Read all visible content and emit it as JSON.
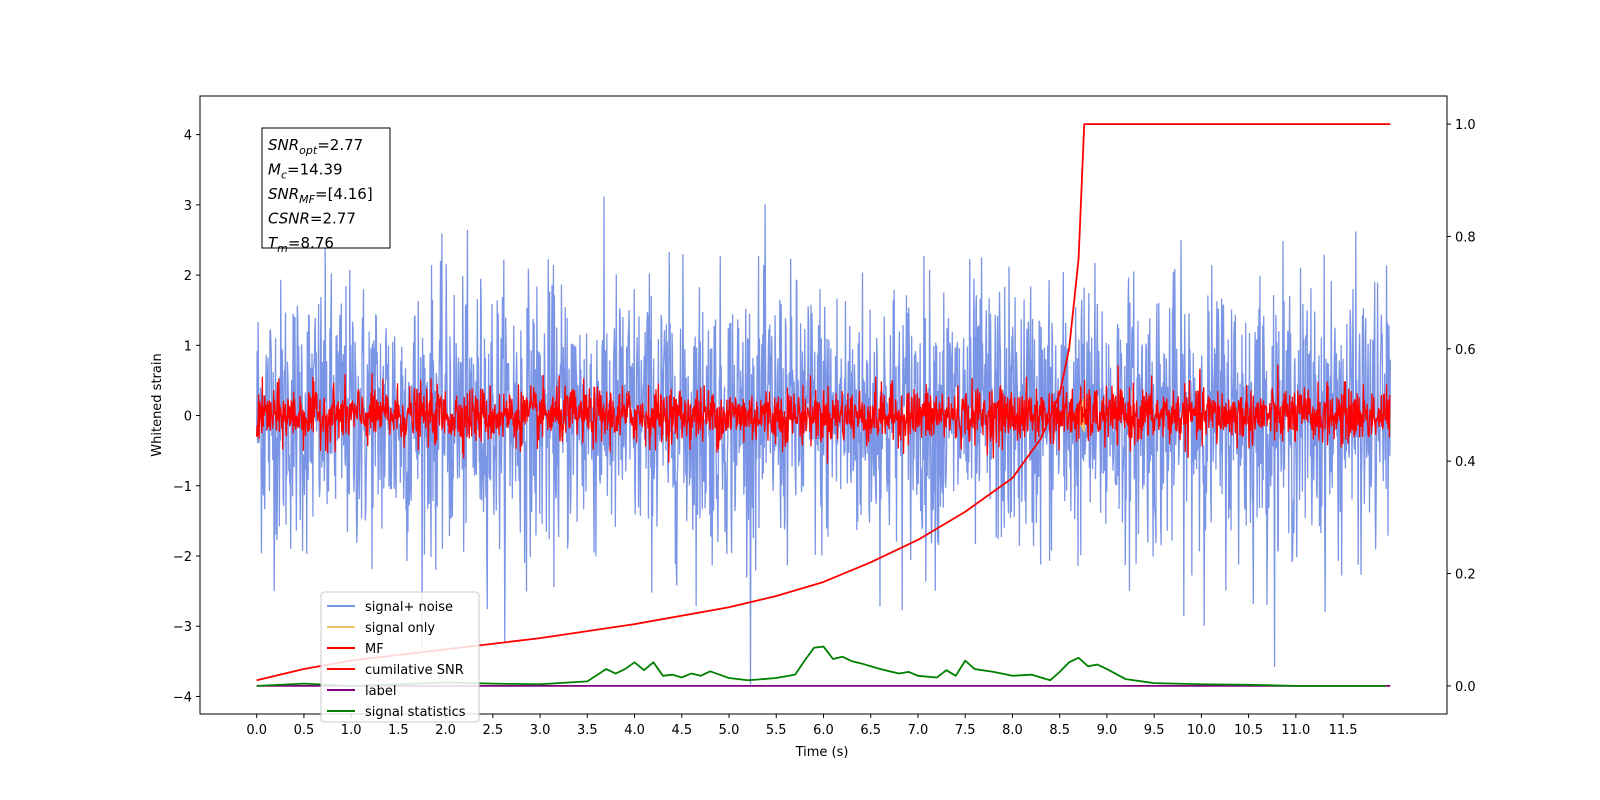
{
  "chart_data": {
    "type": "line",
    "xlabel": "Time (s)",
    "ylabel": "Whitened strain",
    "xlim": [
      -0.6,
      12.6
    ],
    "ylim": [
      -4.25,
      4.55
    ],
    "y2lim": [
      -0.05,
      1.05
    ],
    "x_ticks": [
      "0.0",
      "0.5",
      "1.0",
      "1.5",
      "2.0",
      "2.5",
      "3.0",
      "3.5",
      "4.0",
      "4.5",
      "5.0",
      "5.5",
      "6.0",
      "6.5",
      "7.0",
      "7.5",
      "8.0",
      "8.5",
      "9.0",
      "9.5",
      "10.0",
      "10.5",
      "11.0",
      "11.5"
    ],
    "y_ticks": [
      "4",
      "3",
      "2",
      "1",
      "0",
      "−1",
      "−2",
      "−3",
      "−4"
    ],
    "y2_ticks": [
      "1.0",
      "0.8",
      "0.6",
      "0.4",
      "0.2",
      "0.0"
    ],
    "annotation": [
      {
        "label": "SNR",
        "sub": "opt",
        "value": "=2.77"
      },
      {
        "label": "M",
        "sub": "c",
        "value": "=14.39"
      },
      {
        "label": "SNR",
        "sub": "MF",
        "value": "=[4.16]"
      },
      {
        "label": "CSNR",
        "sub": "",
        "value": "=2.77"
      },
      {
        "label": "T",
        "sub": "m",
        "value": "=8.76"
      }
    ],
    "series": [
      {
        "name": "signal+ noise",
        "color": "#7b95e6",
        "axis": "left",
        "noise_std": 0.95,
        "x_range": [
          0,
          12
        ]
      },
      {
        "name": "signal only",
        "color": "#f5c46a",
        "axis": "left",
        "peak_time": 8.76
      },
      {
        "name": "MF",
        "color": "#ff0000",
        "axis": "left",
        "noise_std": 0.2,
        "x_range": [
          0,
          12
        ]
      },
      {
        "name": "cumilative SNR",
        "color": "#ff0000",
        "axis": "right",
        "x": [
          0.0,
          0.5,
          1.0,
          2.0,
          3.0,
          4.0,
          5.0,
          5.5,
          6.0,
          6.5,
          7.0,
          7.5,
          8.0,
          8.3,
          8.5,
          8.6,
          8.7,
          8.76,
          12.0
        ],
        "values": [
          0.01,
          0.03,
          0.045,
          0.065,
          0.085,
          0.11,
          0.14,
          0.16,
          0.185,
          0.22,
          0.26,
          0.31,
          0.37,
          0.44,
          0.52,
          0.6,
          0.76,
          1.0,
          1.0
        ]
      },
      {
        "name": "label",
        "color": "#800080",
        "axis": "right",
        "x": [
          0,
          12
        ],
        "values": [
          0.0,
          0.0
        ]
      },
      {
        "name": "signal statistics",
        "color": "#008000",
        "axis": "right",
        "x": [
          0.0,
          0.5,
          1.0,
          1.5,
          2.0,
          2.5,
          3.0,
          3.5,
          3.7,
          3.8,
          3.9,
          4.0,
          4.1,
          4.2,
          4.3,
          4.4,
          4.5,
          4.6,
          4.7,
          4.8,
          4.9,
          5.0,
          5.2,
          5.5,
          5.7,
          5.8,
          5.9,
          6.0,
          6.1,
          6.2,
          6.3,
          6.4,
          6.5,
          6.6,
          6.8,
          6.9,
          7.0,
          7.2,
          7.3,
          7.4,
          7.5,
          7.6,
          7.8,
          8.0,
          8.2,
          8.4,
          8.5,
          8.6,
          8.7,
          8.8,
          8.9,
          9.0,
          9.2,
          9.5,
          10.0,
          10.5,
          11.0,
          11.5,
          11.95
        ],
        "values": [
          0.0,
          0.004,
          0.0,
          0.003,
          0.006,
          0.004,
          0.003,
          0.008,
          0.03,
          0.022,
          0.03,
          0.042,
          0.028,
          0.042,
          0.018,
          0.02,
          0.015,
          0.022,
          0.018,
          0.026,
          0.02,
          0.014,
          0.01,
          0.014,
          0.02,
          0.045,
          0.068,
          0.07,
          0.048,
          0.052,
          0.044,
          0.04,
          0.035,
          0.03,
          0.022,
          0.025,
          0.018,
          0.015,
          0.028,
          0.018,
          0.045,
          0.03,
          0.025,
          0.018,
          0.02,
          0.01,
          0.025,
          0.042,
          0.05,
          0.035,
          0.038,
          0.03,
          0.012,
          0.005,
          0.003,
          0.002,
          0.0,
          0.0,
          0.0
        ]
      }
    ],
    "legend_position": "lower-left",
    "grid": false
  }
}
